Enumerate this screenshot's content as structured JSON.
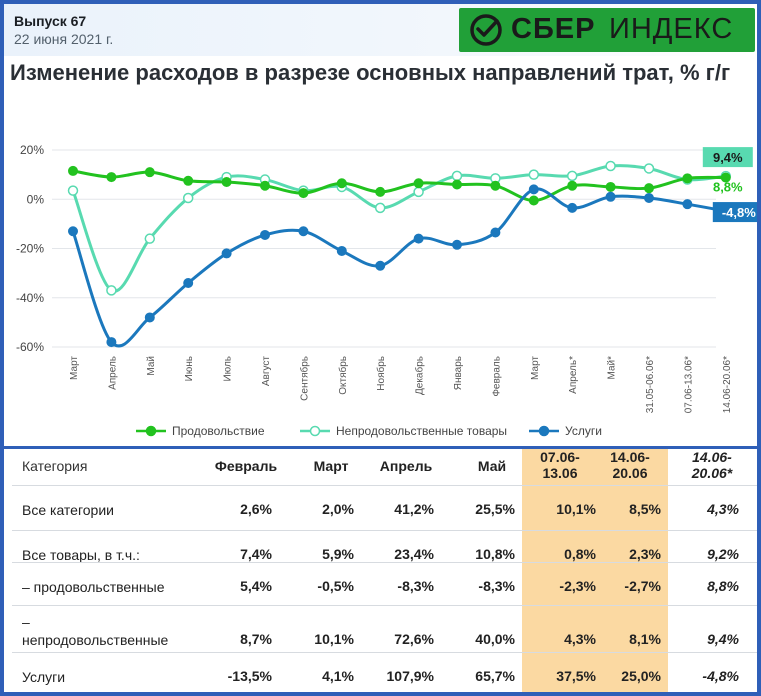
{
  "header": {
    "issue": "Выпуск 67",
    "date": "22 июня 2021 г.",
    "logo_bold": "СБЕР",
    "logo_light": "ИНДЕКС",
    "logo_color": "#21a038"
  },
  "chart_data": {
    "type": "line",
    "title": "Изменение расходов в разрезе основных направлений трат, % г/г",
    "categories": [
      "Март",
      "Апрель",
      "Май",
      "Июнь",
      "Июль",
      "Август",
      "Сентябрь",
      "Октябрь",
      "Ноябрь",
      "Декабрь",
      "Январь",
      "Февраль",
      "Март",
      "Апрель*",
      "Май*",
      "31.05-06.06*",
      "07.06-13.06*",
      "14.06-20.06*"
    ],
    "y_ticks": [
      "20%",
      "0%",
      "-20%",
      "-40%",
      "-60%"
    ],
    "ylim": [
      -60,
      20
    ],
    "legend_position": "bottom",
    "series": [
      {
        "name": "Продовольствие",
        "color": "#22c21f",
        "end_label": "8,8%",
        "values": [
          11.5,
          9,
          11,
          7.5,
          7,
          5.5,
          2.5,
          6.5,
          3,
          6.5,
          6,
          5.5,
          -0.5,
          5.5,
          5,
          4.5,
          8.5,
          8.8
        ]
      },
      {
        "name": "Непродовольственные товары",
        "color": "#58dab0",
        "end_label": "9,4%",
        "values": [
          3.5,
          -37,
          -16,
          0.5,
          9,
          8,
          3.5,
          5,
          -3.5,
          3,
          9.5,
          8.5,
          10,
          9.5,
          13.5,
          12.5,
          8,
          9.4
        ]
      },
      {
        "name": "Услуги",
        "color": "#1b78bd",
        "end_label": "-4,8%",
        "values": [
          -13,
          -58,
          -48,
          -34,
          -22,
          -14.5,
          -13,
          -21,
          -27,
          -16,
          -18.5,
          -13.5,
          4,
          -3.5,
          1,
          0.5,
          -2,
          -4.8
        ]
      }
    ]
  },
  "table": {
    "headers": [
      "Категория",
      "Февраль",
      "Март",
      "Апрель",
      "Май",
      "07.06-\n13.06",
      "14.06-\n20.06",
      "14.06-\n20.06*"
    ],
    "rows": [
      {
        "label": "Все категории",
        "values": [
          "2,6%",
          "2,0%",
          "41,2%",
          "25,5%",
          "10,1%",
          "8,5%",
          "4,3%"
        ]
      },
      {
        "label": "Все товары, в т.ч.:",
        "values": [
          "7,4%",
          "5,9%",
          "23,4%",
          "10,8%",
          "0,8%",
          "2,3%",
          "9,2%"
        ]
      },
      {
        "label": "– продовольственные",
        "values": [
          "5,4%",
          "-0,5%",
          "-8,3%",
          "-8,3%",
          "-2,3%",
          "-2,7%",
          "8,8%"
        ]
      },
      {
        "label": "–\nнепродовольственные",
        "values": [
          "8,7%",
          "10,1%",
          "72,6%",
          "40,0%",
          "4,3%",
          "8,1%",
          "9,4%"
        ]
      },
      {
        "label": "Услуги",
        "values": [
          "-13,5%",
          "4,1%",
          "107,9%",
          "65,7%",
          "37,5%",
          "25,0%",
          "-4,8%"
        ]
      }
    ],
    "highlight_color": "#fbd9a2"
  }
}
